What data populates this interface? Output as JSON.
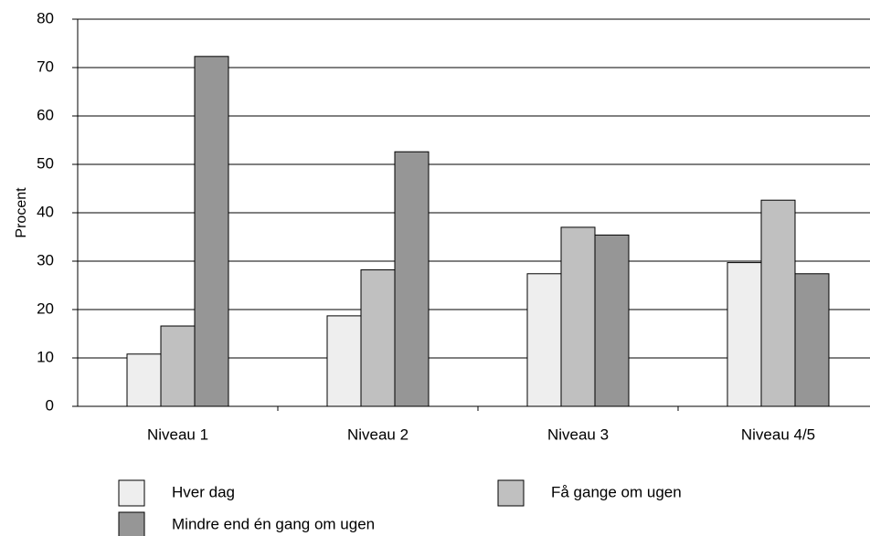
{
  "chart_data": {
    "type": "bar",
    "y_label": "Procent",
    "categories": [
      "Niveau 1",
      "Niveau 2",
      "Niveau 3",
      "Niveau 4/5"
    ],
    "series": [
      {
        "name": "Hver dag",
        "color": "#eeeeee",
        "values": [
          10.8,
          18.7,
          27.4,
          29.7
        ]
      },
      {
        "name": "Få gange om ugen",
        "color": "#c0c0c0",
        "values": [
          16.6,
          28.2,
          37.0,
          42.6
        ]
      },
      {
        "name": "Mindre end én gang om ugen",
        "color": "#969696",
        "values": [
          72.3,
          52.6,
          35.4,
          27.4
        ]
      }
    ],
    "ylim": [
      0,
      80
    ],
    "yticks": [
      0,
      10,
      20,
      30,
      40,
      50,
      60,
      70,
      80
    ],
    "grid": true
  }
}
